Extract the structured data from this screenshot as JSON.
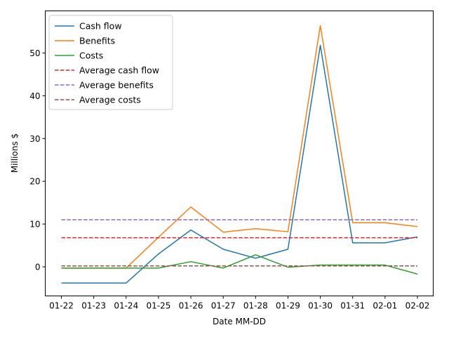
{
  "chart_data": {
    "type": "line",
    "title": "",
    "xlabel": "Date MM-DD",
    "ylabel": "Millions $",
    "categories": [
      "01-22",
      "01-23",
      "01-24",
      "01-25",
      "01-26",
      "01-27",
      "01-28",
      "01-29",
      "01-30",
      "01-31",
      "02-01",
      "02-02"
    ],
    "ylim": [
      -4,
      60
    ],
    "yticks": [
      0,
      10,
      20,
      30,
      40,
      50
    ],
    "grid": false,
    "legend_position": "top-left",
    "series": [
      {
        "name": "Cash flow",
        "color": "#1f77b4",
        "style": "solid",
        "values": [
          -3.8,
          -3.8,
          -3.8,
          3.0,
          8.6,
          4.1,
          2.0,
          4.1,
          51.8,
          5.6,
          5.6,
          7.0
        ]
      },
      {
        "name": "Benefits",
        "color": "#ff7f0e",
        "style": "solid",
        "values": [
          -0.3,
          -0.3,
          -0.3,
          6.9,
          14.0,
          8.1,
          8.9,
          8.2,
          56.4,
          10.3,
          10.3,
          9.4
        ]
      },
      {
        "name": "Costs",
        "color": "#2ca02c",
        "style": "solid",
        "values": [
          -0.3,
          -0.3,
          -0.3,
          -0.3,
          1.2,
          -0.3,
          2.8,
          -0.1,
          0.4,
          0.4,
          0.4,
          -1.7
        ]
      },
      {
        "name": "Average cash flow",
        "color": "#d62728",
        "style": "dashed",
        "values": [
          6.8,
          6.8,
          6.8,
          6.8,
          6.8,
          6.8,
          6.8,
          6.8,
          6.8,
          6.8,
          6.8,
          6.8
        ]
      },
      {
        "name": "Average benefits",
        "color": "#9467bd",
        "style": "dashed",
        "values": [
          11.0,
          11.0,
          11.0,
          11.0,
          11.0,
          11.0,
          11.0,
          11.0,
          11.0,
          11.0,
          11.0,
          11.0
        ]
      },
      {
        "name": "Average costs",
        "color": "#8c564b",
        "style": "dashed",
        "values": [
          0.2,
          0.2,
          0.2,
          0.2,
          0.2,
          0.2,
          0.2,
          0.2,
          0.2,
          0.2,
          0.2,
          0.2
        ]
      }
    ]
  }
}
